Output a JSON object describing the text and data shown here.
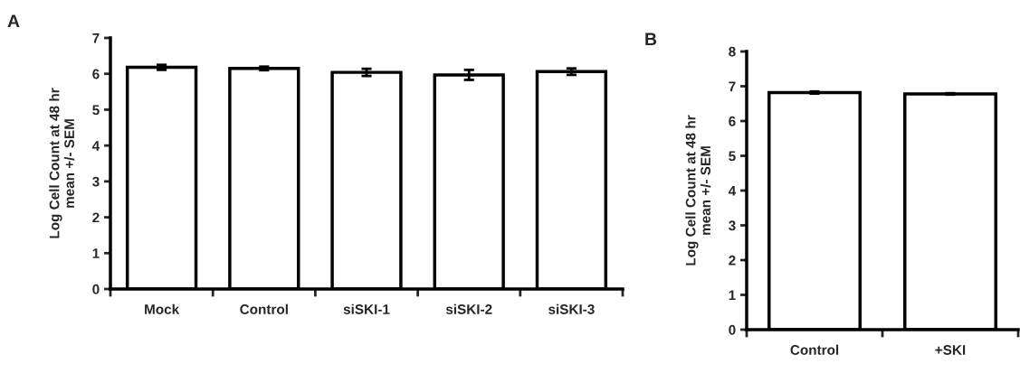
{
  "chart_data": [
    {
      "type": "bar",
      "title": "A",
      "ylabel": "Log Cell Count at 48 hr\nmean +/- SEM",
      "categories": [
        "Mock",
        "Control",
        "siSKI-1",
        "siSKI-2",
        "siSKI-3"
      ],
      "values": [
        6.18,
        6.15,
        6.04,
        5.97,
        6.06
      ],
      "errors": [
        0.07,
        0.05,
        0.1,
        0.14,
        0.09
      ],
      "color": "#ffffff",
      "ylim": [
        0,
        7
      ],
      "yticks": [
        0,
        1,
        2,
        3,
        4,
        5,
        6,
        7
      ],
      "grid": false,
      "legend": false
    },
    {
      "type": "bar",
      "title": "B",
      "ylabel": "Log Cell Count at 48 hr\nmean +/- SEM",
      "categories": [
        "Control",
        "+SKI"
      ],
      "values": [
        6.82,
        6.78
      ],
      "errors": [
        0.03,
        0.02
      ],
      "color": "#ffffff",
      "ylim": [
        0,
        8
      ],
      "yticks": [
        0,
        1,
        2,
        3,
        4,
        5,
        6,
        7,
        8
      ],
      "grid": false,
      "legend": false
    }
  ]
}
